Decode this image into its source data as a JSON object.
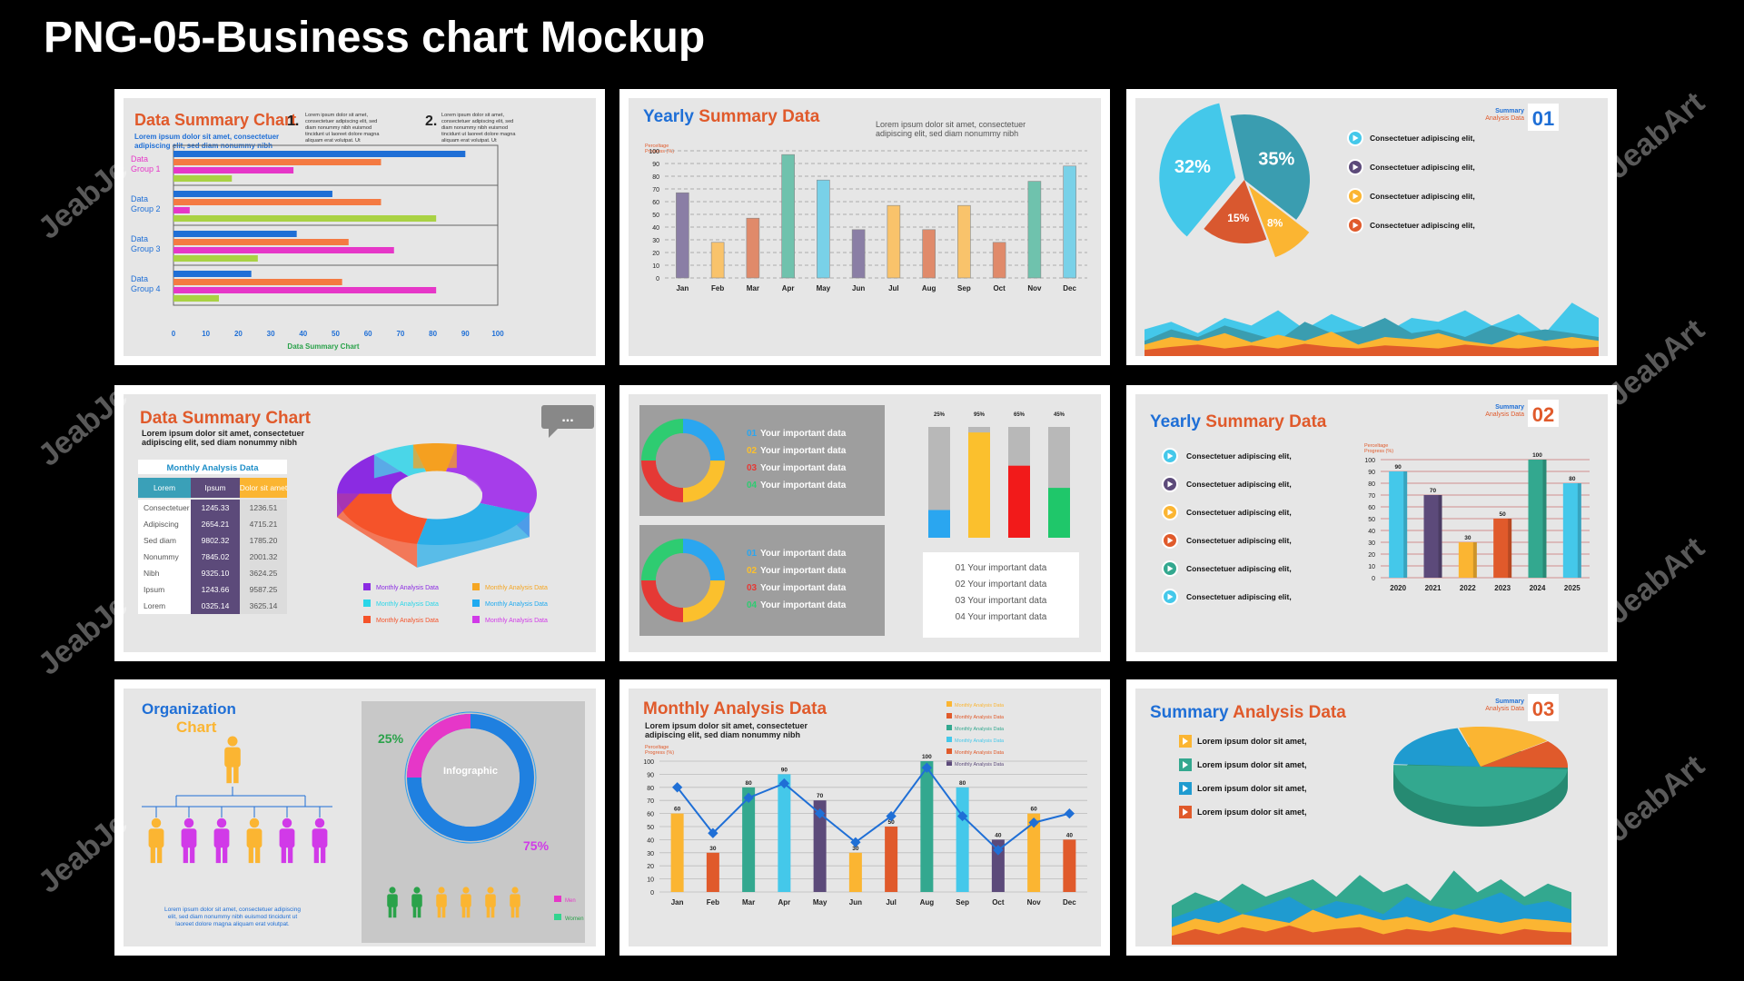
{
  "page_title": "PNG-05-Business chart Mockup",
  "watermark": "JeabArt",
  "watermark_left": "JeabJe",
  "lorem_short": "Lorem ipsum dolor sit amet, consectetuer adipiscing elit, sed diam nonummy nibh",
  "lorem_long": "Lorem ipsum dolor sit amet, consectetuer adipiscing elit, sed diam nonummy nibh euismod tincidunt ut laoreet dolore magna aliquam erat volutpat. Ut",
  "axis_caption": "Perceltage Progress (%)",
  "corner_label": {
    "line1": "Summary",
    "line2": "Analysis Data"
  },
  "consectetuer": "Consectetuer adipiscing elit,",
  "colors": {
    "orange": "#e05a2b",
    "blue": "#1f6fd6",
    "cyan": "#44c8ea",
    "purple": "#5c4a7a",
    "yellow": "#fbb532",
    "green": "#33a88f",
    "red": "#e0482d",
    "magenta": "#e637c8",
    "violet": "#8b2be2"
  },
  "chart_data": [
    {
      "type": "bar",
      "title": "Data Summary Chart",
      "xlabel": "Data Summary Chart",
      "orientation": "horizontal",
      "numbered": [
        "1.",
        "2."
      ],
      "categories": [
        "Data Group 1",
        "Data Group 2",
        "Data Group 3",
        "Data Group 4"
      ],
      "series": [
        {
          "color": "#1f6fd6",
          "values": [
            90,
            49,
            38,
            24
          ]
        },
        {
          "color": "#f47a42",
          "values": [
            64,
            64,
            54,
            52
          ]
        },
        {
          "color": "#e637c8",
          "values": [
            37,
            5,
            68,
            81
          ]
        },
        {
          "color": "#a9d244",
          "values": [
            18,
            81,
            26,
            14
          ]
        }
      ],
      "xticks": [
        0,
        10,
        20,
        30,
        40,
        50,
        60,
        70,
        80,
        90,
        100
      ],
      "xlim": [
        0,
        100
      ]
    },
    {
      "type": "bar",
      "title": "Yearly Summary Data",
      "categories": [
        "Jan",
        "Feb",
        "Mar",
        "Apr",
        "May",
        "Jun",
        "Jul",
        "Aug",
        "Sep",
        "Oct",
        "Nov",
        "Dec"
      ],
      "values": [
        67,
        28,
        47,
        97,
        77,
        38,
        57,
        38,
        57,
        28,
        76,
        88
      ],
      "colors": [
        "#8a7ea5",
        "#f9c36b",
        "#e08a6a",
        "#6fc2ad",
        "#79d1e8",
        "#8a7ea5",
        "#f9c36b",
        "#e08a6a",
        "#f9c36b",
        "#e08a6a",
        "#6fc2ad",
        "#79d1e8"
      ],
      "yticks": [
        0,
        10,
        20,
        30,
        40,
        50,
        60,
        70,
        80,
        90,
        100
      ],
      "ylim": [
        0,
        100
      ]
    },
    {
      "type": "pie",
      "number": "01",
      "slices": [
        {
          "label": "32%",
          "value": 32,
          "color": "#44c8ea"
        },
        {
          "label": "35%",
          "value": 35,
          "color": "#3a9db0"
        },
        {
          "label": "8%",
          "value": 8,
          "color": "#fbb532"
        },
        {
          "label": "15%",
          "value": 15,
          "color": "#d9582f"
        }
      ],
      "legend_colors": [
        "#44c8ea",
        "#5c4a7a",
        "#fbb532",
        "#e05a2b"
      ]
    },
    {
      "type": "pie",
      "title": "Data Summary Chart",
      "subtitle_table": {
        "title": "Monthly Analysis Data",
        "headers": [
          "Lorem",
          "Ipsum",
          "Dolor sit amet"
        ],
        "rows": [
          [
            "Consectetuer",
            "1245.33",
            "1236.51"
          ],
          [
            "Adipiscing",
            "2654.21",
            "4715.21"
          ],
          [
            "Sed diam",
            "9802.32",
            "1785.20"
          ],
          [
            "Nonummy",
            "7845.02",
            "2001.32"
          ],
          [
            "Nibh",
            "9325.10",
            "3624.25"
          ],
          [
            "Ipsum",
            "1243.66",
            "9587.25"
          ],
          [
            "Lorem",
            "0325.14",
            "3625.14"
          ]
        ]
      },
      "bubble": "...",
      "slices": [
        {
          "value": 28,
          "color": "#a63dea"
        },
        {
          "value": 22,
          "color": "#2aaee8"
        },
        {
          "value": 22,
          "color": "#f5532a"
        },
        {
          "value": 14,
          "color": "#8b2be2"
        },
        {
          "value": 7,
          "color": "#4ad6e8"
        },
        {
          "value": 7,
          "color": "#f5a020"
        }
      ],
      "legend": [
        {
          "name": "Monthly Analysis Data",
          "color": "#8b2be2"
        },
        {
          "name": "Monthly Analysis Data",
          "color": "#f5a623"
        },
        {
          "name": "Monthly Analysis Data",
          "color": "#2ad6e8"
        },
        {
          "name": "Monthly Analysis Data",
          "color": "#1faaf0"
        },
        {
          "name": "Monthly Analysis Data",
          "color": "#f5532a"
        },
        {
          "name": "Monthly Analysis Data",
          "color": "#d13ae8"
        }
      ]
    },
    {
      "type": "bar",
      "donut_items": [
        {
          "num": "01",
          "text": "Your important data",
          "color": "#2aa6f0"
        },
        {
          "num": "02",
          "text": "Your important data",
          "color": "#fbc02d"
        },
        {
          "num": "03",
          "text": "Your important data",
          "color": "#e53935"
        },
        {
          "num": "04",
          "text": "Your important data",
          "color": "#2ecc71"
        }
      ],
      "categories": [
        "25%",
        "95%",
        "65%",
        "45%"
      ],
      "values": [
        25,
        95,
        65,
        45
      ],
      "colors": [
        "#2aa6f0",
        "#fbc02d",
        "#f21a1a",
        "#1fc76a"
      ],
      "list": [
        "01 Your important data",
        "02 Your important data",
        "03 Your important data",
        "04 Your important data"
      ]
    },
    {
      "type": "bar",
      "title": "Yearly Summary Data",
      "number": "02",
      "categories": [
        "2020",
        "2021",
        "2022",
        "2023",
        "2024",
        "2025"
      ],
      "values": [
        90,
        70,
        30,
        50,
        100,
        80
      ],
      "colors": [
        "#44c8ea",
        "#5c4a7a",
        "#fbb532",
        "#e05a2b",
        "#33a88f",
        "#44c8ea"
      ],
      "legend_colors": [
        "#44c8ea",
        "#5c4a7a",
        "#fbb532",
        "#e05a2b",
        "#33a88f",
        "#44c8ea"
      ],
      "yticks": [
        0,
        10,
        20,
        30,
        40,
        50,
        60,
        70,
        80,
        90,
        100
      ],
      "ylim": [
        0,
        100
      ]
    },
    {
      "type": "other",
      "title": "Organization",
      "subtitle": "Chart",
      "infographic": "Infographic",
      "pct_a": "25%",
      "pct_b": "75%",
      "men": "Men",
      "women": "Women",
      "org_text": "Lorem ipsum dolor sit amet, consectetuer adipiscing elit, sed diam nonummy nibh euismod tincidunt ut laoreet dolore magna aliquam erat volutpat."
    },
    {
      "type": "bar",
      "title": "Monthly Analysis Data",
      "categories": [
        "Jan",
        "Feb",
        "Mar",
        "Apr",
        "May",
        "Jun",
        "Jul",
        "Aug",
        "Sep",
        "Oct",
        "Nov",
        "Dec"
      ],
      "values": [
        60,
        30,
        80,
        90,
        70,
        30,
        50,
        100,
        80,
        40,
        60,
        40
      ],
      "colors": [
        "#fbb532",
        "#e05a2b",
        "#33a88f",
        "#44c8ea",
        "#5c4a7a",
        "#fbb532",
        "#e05a2b",
        "#33a88f",
        "#44c8ea",
        "#5c4a7a",
        "#fbb532",
        "#e05a2b"
      ],
      "line": [
        80,
        45,
        72,
        83,
        60,
        38,
        58,
        95,
        58,
        32,
        53,
        60
      ],
      "legend": [
        "Monthly Analysis Data",
        "Monthly Analysis Data",
        "Monthly Analysis Data",
        "Monthly Analysis Data",
        "Monthly Analysis Data",
        "Monthly Analysis Data"
      ],
      "legend_colors": [
        "#fbb532",
        "#e05a2b",
        "#33a88f",
        "#44c8ea",
        "#e05a2b",
        "#5c4a7a"
      ],
      "yticks": [
        0,
        10,
        20,
        30,
        40,
        50,
        60,
        70,
        80,
        90,
        100
      ],
      "ylim": [
        0,
        100
      ]
    },
    {
      "type": "pie",
      "title": "Summary Analysis Data",
      "number": "03",
      "slices": [
        {
          "value": 50,
          "color": "#33a88f"
        },
        {
          "value": 20,
          "color": "#1f9bd0"
        },
        {
          "value": 18,
          "color": "#fbb532"
        },
        {
          "value": 12,
          "color": "#e05a2b"
        }
      ],
      "list": [
        "Lorem ipsum dolor sit amet,",
        "Lorem ipsum dolor sit amet,",
        "Lorem ipsum dolor sit amet,",
        "Lorem ipsum dolor sit amet,"
      ],
      "list_colors": [
        "#fbb532",
        "#33a88f",
        "#1f9bd0",
        "#e05a2b"
      ]
    }
  ]
}
